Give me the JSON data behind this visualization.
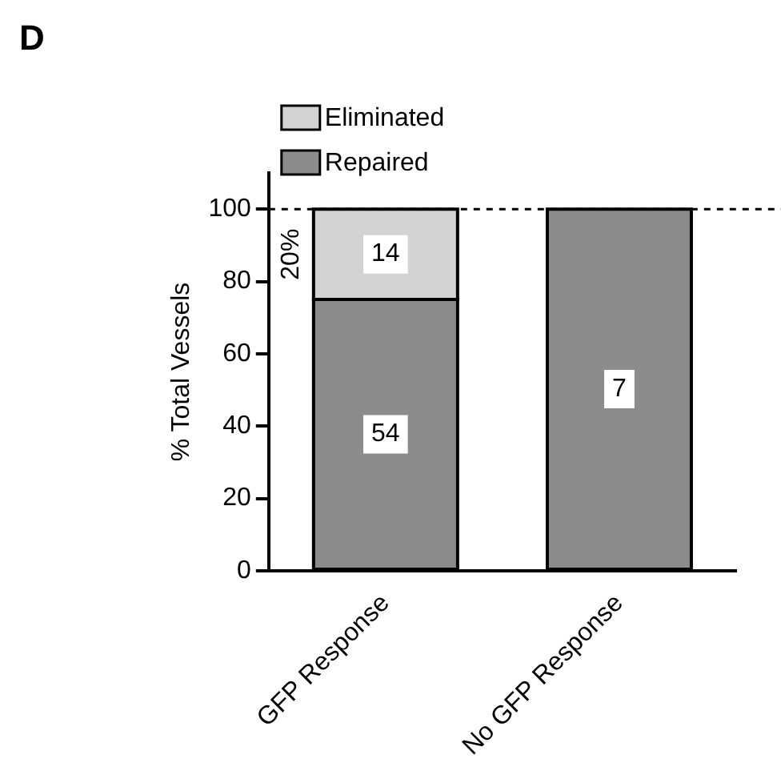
{
  "chart_data": {
    "type": "bar",
    "stacked": true,
    "ylabel": "% Total Vessels",
    "categories": [
      "GFP Response",
      "No GFP Response"
    ],
    "series": [
      {
        "name": "Repaired",
        "color": "#8c8c8c",
        "values": [
          75,
          100
        ]
      },
      {
        "name": "Eliminated",
        "color": "#d3d3d3",
        "values": [
          25,
          0
        ]
      }
    ],
    "ylim": [
      0,
      110
    ],
    "yticks": [
      0,
      20,
      40,
      60,
      80,
      100
    ],
    "grid": false,
    "legend": "top left",
    "ref_lines": [
      {
        "axis": "y",
        "value": 100,
        "line_style": "dashed",
        "color": "#000000"
      }
    ],
    "annotations": [
      "D",
      "20%",
      "14",
      "54",
      "7"
    ]
  }
}
